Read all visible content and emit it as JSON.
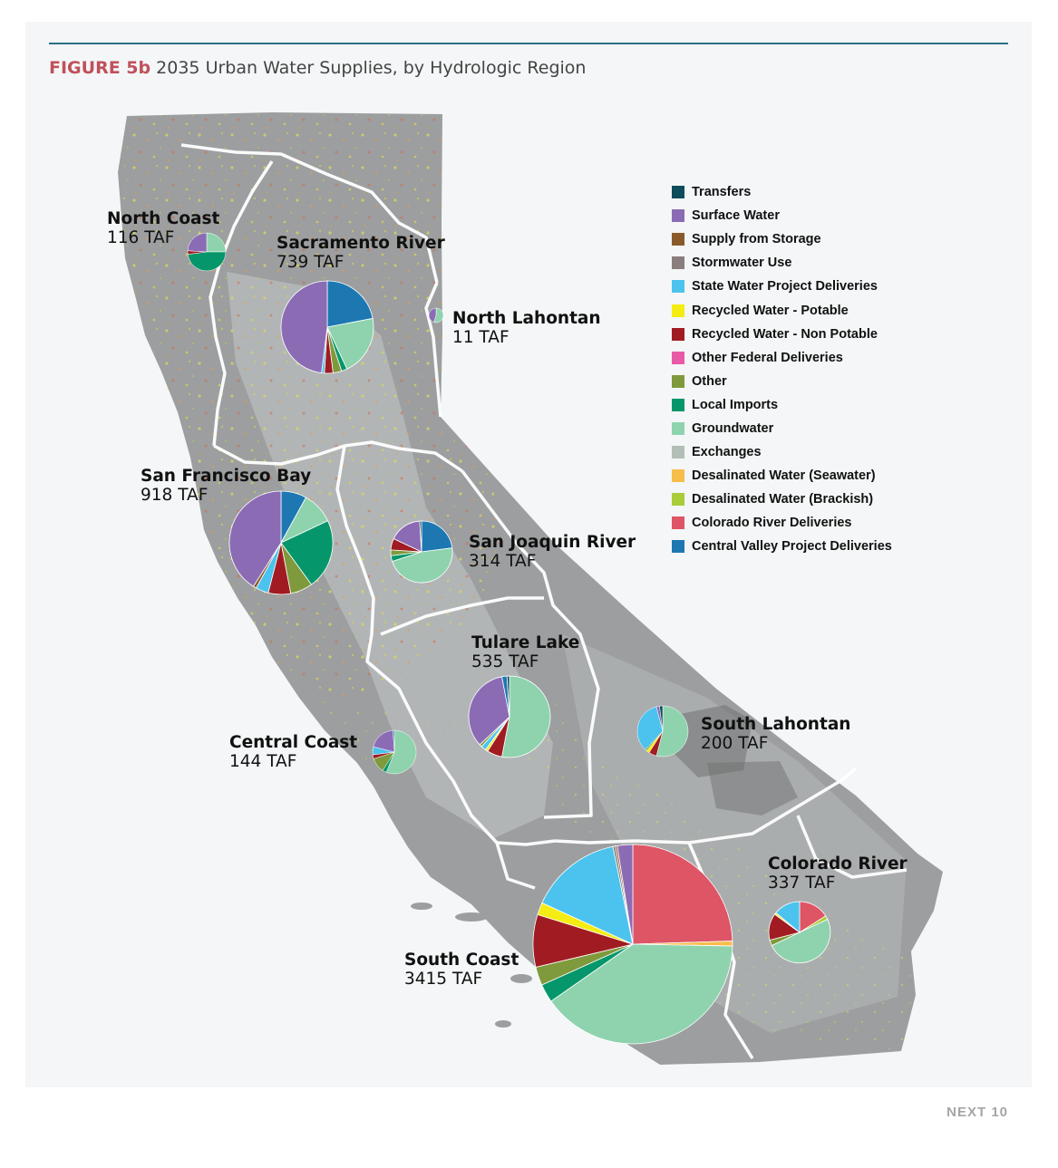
{
  "figure": {
    "label": "FIGURE 5b",
    "title": "2035 Urban Water Supplies, by Hydrologic Region"
  },
  "footer": "NEXT 10",
  "colors": {
    "map_land": "#9a9c9d",
    "map_land_light": "#b7b9ba",
    "region_boundary": "#ffffff",
    "title_label": "#c0505a",
    "rule": "#2f6e85"
  },
  "legend": [
    {
      "key": "transfers",
      "label": "Transfers",
      "color": "#0f4c5c"
    },
    {
      "key": "surface_water",
      "label": "Surface Water",
      "color": "#8c6bb5"
    },
    {
      "key": "supply_from_storage",
      "label": "Supply from Storage",
      "color": "#8b5a2b"
    },
    {
      "key": "stormwater_use",
      "label": "Stormwater Use",
      "color": "#8a7d7d"
    },
    {
      "key": "swp",
      "label": "State Water Project Deliveries",
      "color": "#4cc3ee"
    },
    {
      "key": "recycled_potable",
      "label": "Recycled Water - Potable",
      "color": "#f4ec13"
    },
    {
      "key": "recycled_non_potable",
      "label": "Recycled Water - Non Potable",
      "color": "#a01c22"
    },
    {
      "key": "other_federal",
      "label": "Other Federal Deliveries",
      "color": "#e95aa6"
    },
    {
      "key": "other",
      "label": "Other",
      "color": "#7f9a3c"
    },
    {
      "key": "local_imports",
      "label": "Local Imports",
      "color": "#05966b"
    },
    {
      "key": "groundwater",
      "label": "Groundwater",
      "color": "#8fd3ae"
    },
    {
      "key": "exchanges",
      "label": "Exchanges",
      "color": "#b2beb6"
    },
    {
      "key": "desal_seawater",
      "label": "Desalinated Water (Seawater)",
      "color": "#f7bd4a"
    },
    {
      "key": "desal_brackish",
      "label": "Desalinated Water (Brackish)",
      "color": "#a8cc3a"
    },
    {
      "key": "colorado_river",
      "label": "Colorado River Deliveries",
      "color": "#de5565"
    },
    {
      "key": "cvp",
      "label": "Central Valley Project Deliveries",
      "color": "#1d78b2"
    }
  ],
  "regions": [
    {
      "name": "North Coast",
      "total": "116 TAF",
      "slices": [
        {
          "k": "groundwater",
          "v": 0.25
        },
        {
          "k": "local_imports",
          "v": 0.48
        },
        {
          "k": "recycled_non_potable",
          "v": 0.03
        },
        {
          "k": "surface_water",
          "v": 0.24
        }
      ]
    },
    {
      "name": "Sacramento River",
      "total": "739 TAF",
      "slices": [
        {
          "k": "cvp",
          "v": 0.22
        },
        {
          "k": "groundwater",
          "v": 0.21
        },
        {
          "k": "local_imports",
          "v": 0.02
        },
        {
          "k": "other",
          "v": 0.03
        },
        {
          "k": "recycled_non_potable",
          "v": 0.03
        },
        {
          "k": "swp",
          "v": 0.01
        },
        {
          "k": "surface_water",
          "v": 0.48
        }
      ]
    },
    {
      "name": "North Lahontan",
      "total": "11 TAF",
      "slices": [
        {
          "k": "groundwater",
          "v": 0.55
        },
        {
          "k": "surface_water",
          "v": 0.45
        }
      ]
    },
    {
      "name": "San Francisco Bay",
      "total": "918 TAF",
      "slices": [
        {
          "k": "cvp",
          "v": 0.08
        },
        {
          "k": "groundwater",
          "v": 0.1
        },
        {
          "k": "local_imports",
          "v": 0.22
        },
        {
          "k": "other",
          "v": 0.07
        },
        {
          "k": "recycled_non_potable",
          "v": 0.07
        },
        {
          "k": "swp",
          "v": 0.04
        },
        {
          "k": "supply_from_storage",
          "v": 0.01
        },
        {
          "k": "surface_water",
          "v": 0.41
        }
      ]
    },
    {
      "name": "San Joaquin River",
      "total": "314 TAF",
      "slices": [
        {
          "k": "cvp",
          "v": 0.23
        },
        {
          "k": "groundwater",
          "v": 0.47
        },
        {
          "k": "local_imports",
          "v": 0.03
        },
        {
          "k": "other",
          "v": 0.03
        },
        {
          "k": "recycled_non_potable",
          "v": 0.06
        },
        {
          "k": "surface_water",
          "v": 0.17
        },
        {
          "k": "transfers",
          "v": 0.01
        }
      ]
    },
    {
      "name": "Tulare Lake",
      "total": "535 TAF",
      "slices": [
        {
          "k": "groundwater",
          "v": 0.53
        },
        {
          "k": "recycled_non_potable",
          "v": 0.06
        },
        {
          "k": "recycled_potable",
          "v": 0.01
        },
        {
          "k": "swp",
          "v": 0.02
        },
        {
          "k": "other",
          "v": 0.01
        },
        {
          "k": "surface_water",
          "v": 0.34
        },
        {
          "k": "cvp",
          "v": 0.02
        },
        {
          "k": "transfers",
          "v": 0.01
        }
      ]
    },
    {
      "name": "Central Coast",
      "total": "144 TAF",
      "slices": [
        {
          "k": "groundwater",
          "v": 0.56
        },
        {
          "k": "local_imports",
          "v": 0.03
        },
        {
          "k": "other",
          "v": 0.11
        },
        {
          "k": "recycled_non_potable",
          "v": 0.03
        },
        {
          "k": "swp",
          "v": 0.06
        },
        {
          "k": "surface_water",
          "v": 0.2
        },
        {
          "k": "cvp",
          "v": 0.01
        }
      ]
    },
    {
      "name": "South Lahontan",
      "total": "200 TAF",
      "slices": [
        {
          "k": "groundwater",
          "v": 0.54
        },
        {
          "k": "recycled_non_potable",
          "v": 0.05
        },
        {
          "k": "recycled_potable",
          "v": 0.02
        },
        {
          "k": "other",
          "v": 0.01
        },
        {
          "k": "swp",
          "v": 0.34
        },
        {
          "k": "surface_water",
          "v": 0.02
        },
        {
          "k": "transfers",
          "v": 0.02
        }
      ]
    },
    {
      "name": "South Coast",
      "total": "3415 TAF",
      "slices": [
        {
          "k": "colorado_river",
          "v": 0.245
        },
        {
          "k": "desal_seawater",
          "v": 0.008
        },
        {
          "k": "groundwater",
          "v": 0.4
        },
        {
          "k": "local_imports",
          "v": 0.03
        },
        {
          "k": "other",
          "v": 0.03
        },
        {
          "k": "recycled_non_potable",
          "v": 0.085
        },
        {
          "k": "recycled_potable",
          "v": 0.02
        },
        {
          "k": "swp",
          "v": 0.15
        },
        {
          "k": "stormwater_use",
          "v": 0.004
        },
        {
          "k": "supply_from_storage",
          "v": 0.003
        },
        {
          "k": "surface_water",
          "v": 0.025
        }
      ]
    },
    {
      "name": "Colorado River",
      "total": "337 TAF",
      "slices": [
        {
          "k": "colorado_river",
          "v": 0.16
        },
        {
          "k": "desal_brackish",
          "v": 0.02
        },
        {
          "k": "groundwater",
          "v": 0.5
        },
        {
          "k": "other",
          "v": 0.03
        },
        {
          "k": "recycled_non_potable",
          "v": 0.14
        },
        {
          "k": "recycled_potable",
          "v": 0.01
        },
        {
          "k": "swp",
          "v": 0.14
        }
      ]
    }
  ]
}
